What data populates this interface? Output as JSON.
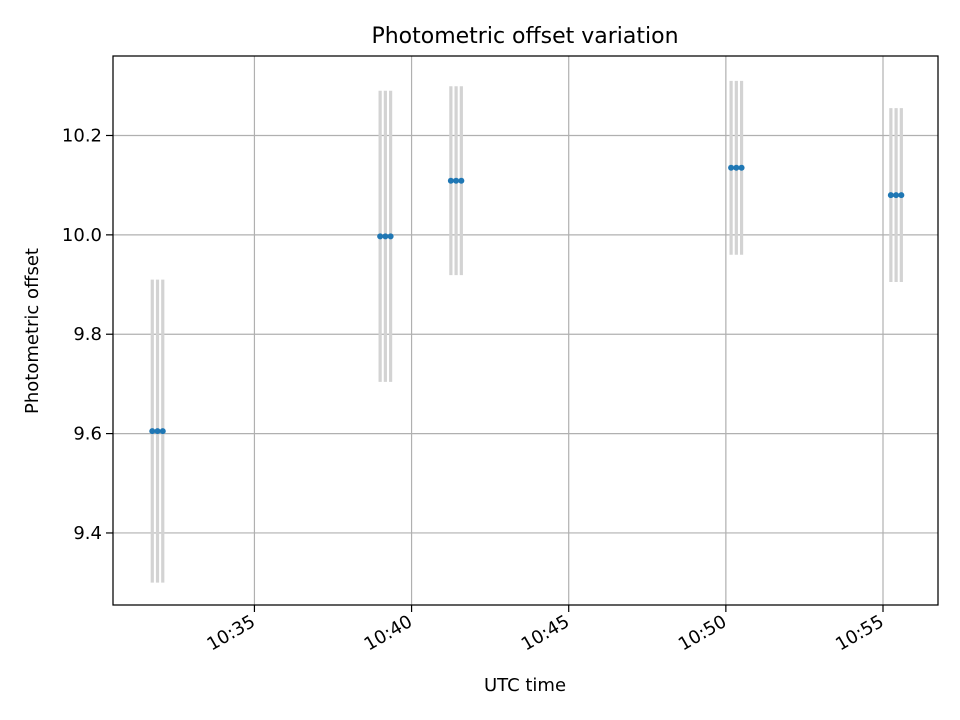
{
  "chart_data": {
    "type": "scatter",
    "title": "Photometric offset variation",
    "xlabel": "UTC time",
    "ylabel": "Photometric offset",
    "x_ticks": [
      "10:35",
      "10:40",
      "10:45",
      "10:50",
      "10:55"
    ],
    "y_ticks": [
      "9.4",
      "9.6",
      "9.8",
      "10.0",
      "10.2"
    ],
    "xlim": [
      "10:30:30",
      "10:56:45"
    ],
    "ylim": [
      9.255,
      10.36
    ],
    "grid": true,
    "colors": {
      "points": "#1f77b4",
      "errorbars": "#d3d3d3",
      "grid": "#b0b0b0"
    },
    "points": [
      {
        "x": "10:31:45",
        "y": 9.605,
        "yerr": 0.305
      },
      {
        "x": "10:31:55",
        "y": 9.605,
        "yerr": 0.305
      },
      {
        "x": "10:32:05",
        "y": 9.605,
        "yerr": 0.305
      },
      {
        "x": "10:39:00",
        "y": 9.997,
        "yerr": 0.293
      },
      {
        "x": "10:39:10",
        "y": 9.997,
        "yerr": 0.293
      },
      {
        "x": "10:39:20",
        "y": 9.997,
        "yerr": 0.293
      },
      {
        "x": "10:41:15",
        "y": 10.109,
        "yerr": 0.19
      },
      {
        "x": "10:41:25",
        "y": 10.109,
        "yerr": 0.19
      },
      {
        "x": "10:41:35",
        "y": 10.109,
        "yerr": 0.19
      },
      {
        "x": "10:50:10",
        "y": 10.135,
        "yerr": 0.175
      },
      {
        "x": "10:50:20",
        "y": 10.135,
        "yerr": 0.175
      },
      {
        "x": "10:50:30",
        "y": 10.135,
        "yerr": 0.175
      },
      {
        "x": "10:55:15",
        "y": 10.08,
        "yerr": 0.175
      },
      {
        "x": "10:55:25",
        "y": 10.08,
        "yerr": 0.175
      },
      {
        "x": "10:55:35",
        "y": 10.08,
        "yerr": 0.175
      }
    ]
  }
}
